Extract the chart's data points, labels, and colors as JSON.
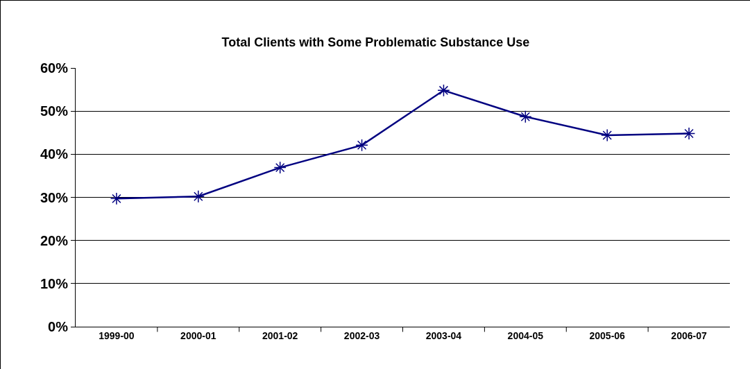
{
  "chart_data": {
    "type": "line",
    "title": "Total Clients with Some Problematic Substance Use",
    "categories": [
      "1999-00",
      "2000-01",
      "2001-02",
      "2002-03",
      "2003-04",
      "2004-05",
      "2005-06",
      "2006-07"
    ],
    "series": [
      {
        "color": "#000080",
        "values": [
          29.7,
          30.2,
          36.9,
          42.1,
          54.8,
          48.7,
          44.4,
          44.8
        ]
      }
    ],
    "ylim": [
      0,
      60
    ],
    "yticks": [
      {
        "value": 0,
        "label": "0%"
      },
      {
        "value": 10,
        "label": "10%"
      },
      {
        "value": 20,
        "label": "20%"
      },
      {
        "value": 30,
        "label": "30%"
      },
      {
        "value": 40,
        "label": "40%"
      },
      {
        "value": 50,
        "label": "50%"
      },
      {
        "value": 60,
        "label": "60%"
      }
    ],
    "grid": "y",
    "legend": false,
    "marker": "cross",
    "line_style": "solid"
  }
}
